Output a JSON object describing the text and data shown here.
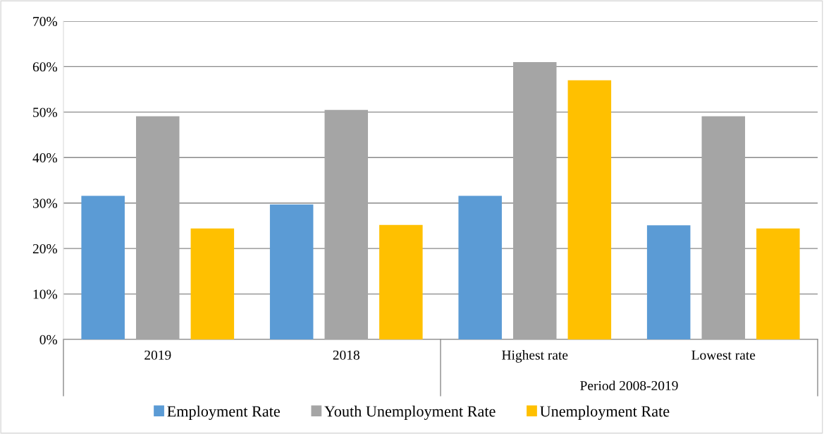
{
  "chart_data": {
    "type": "bar",
    "categories": [
      "2019",
      "2018",
      "Highest rate",
      "Lowest rate"
    ],
    "series": [
      {
        "name": "Employment Rate",
        "color": "#5b9bd5",
        "values": [
          31.6,
          29.7,
          31.6,
          25.1
        ]
      },
      {
        "name": "Youth Unemployment Rate",
        "color": "#a5a5a5",
        "values": [
          49.1,
          50.5,
          61.0,
          49.1
        ]
      },
      {
        "name": "Unemployment Rate",
        "color": "#ffc000",
        "values": [
          24.4,
          25.2,
          57.0,
          24.4
        ]
      }
    ],
    "ylim": [
      0,
      70
    ],
    "yticks": [
      {
        "value": 0,
        "label": "0%"
      },
      {
        "value": 10,
        "label": "10%"
      },
      {
        "value": 20,
        "label": "20%"
      },
      {
        "value": 30,
        "label": "30%"
      },
      {
        "value": 40,
        "label": "40%"
      },
      {
        "value": 50,
        "label": "50%"
      },
      {
        "value": 60,
        "label": "60%"
      },
      {
        "value": 70,
        "label": "70%"
      }
    ],
    "annotations": [
      "Period 2008-2019"
    ],
    "grid": "y",
    "legend": "bottom"
  }
}
